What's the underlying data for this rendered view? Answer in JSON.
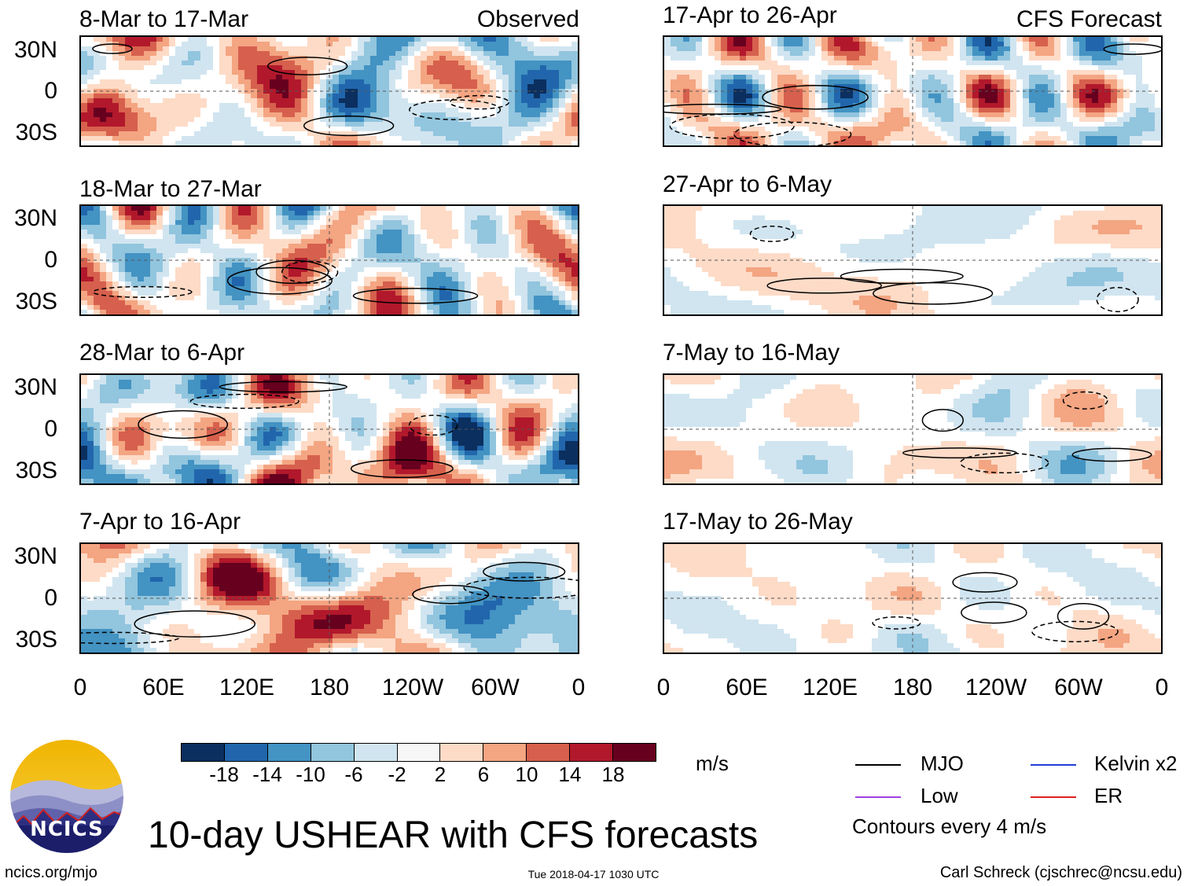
{
  "observed_label": "Observed",
  "forecast_label": "CFS Forecast",
  "observed_panels": [
    {
      "title": "8-Mar to 17-Mar"
    },
    {
      "title": "18-Mar to 27-Mar"
    },
    {
      "title": "28-Mar to 6-Apr"
    },
    {
      "title": "7-Apr to 16-Apr"
    }
  ],
  "forecast_panels": [
    {
      "title": "17-Apr to 26-Apr"
    },
    {
      "title": "27-Apr to 6-May"
    },
    {
      "title": "7-May to 16-May"
    },
    {
      "title": "17-May to 26-May"
    }
  ],
  "lat_labels": [
    "30N",
    "0",
    "30S"
  ],
  "lon_labels": [
    "0",
    "60E",
    "120E",
    "180",
    "120W",
    "60W",
    "0"
  ],
  "colorbar": {
    "colors": [
      "#0b2f5f",
      "#2166ac",
      "#4393c3",
      "#92c5de",
      "#d1e5f0",
      "#f7f7f7",
      "#fddbc7",
      "#f4a582",
      "#d6604d",
      "#b2182b",
      "#67001f"
    ],
    "labels": [
      "-18",
      "-14",
      "-10",
      "-6",
      "-2",
      "2",
      "6",
      "10",
      "14",
      "18"
    ],
    "units": "m/s"
  },
  "legend": {
    "items": [
      {
        "label": "MJO",
        "color": "#000000"
      },
      {
        "label": "Kelvin x2",
        "color": "#1f3fd6"
      },
      {
        "label": "Low",
        "color": "#a040e0"
      },
      {
        "label": "ER",
        "color": "#e02020"
      }
    ],
    "note": "Contours every 4 m/s"
  },
  "logo_text": "NCICS",
  "main_title": "10-day USHEAR with CFS forecasts",
  "footer": {
    "url": "ncics.org/mjo",
    "timestamp": "Tue 2018-04-17 1030 UTC",
    "author": "Carl Schreck (cjschrec@ncsu.edu)"
  }
}
